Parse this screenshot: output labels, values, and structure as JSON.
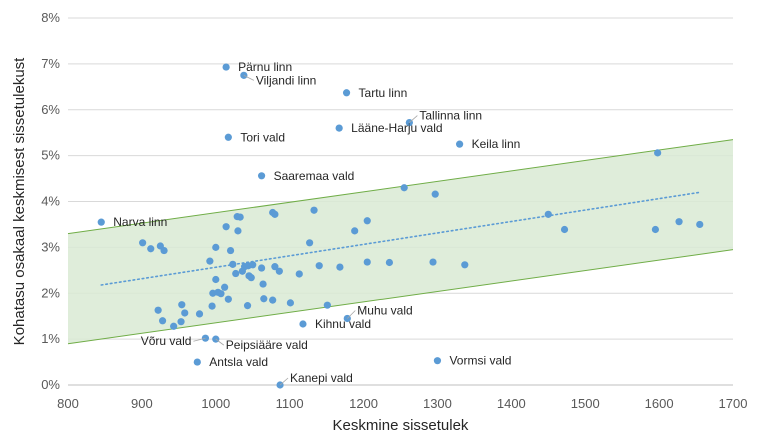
{
  "chart_data": {
    "type": "scatter",
    "xlabel": "Keskmine sissetulek",
    "ylabel": "Kohatasu osakaal keskmisest sissetulekust",
    "xlim": [
      800,
      1700
    ],
    "ylim": [
      0,
      8
    ],
    "x_ticks": [
      800,
      900,
      1000,
      1100,
      1200,
      1300,
      1400,
      1500,
      1600,
      1700
    ],
    "y_ticks": [
      "0%",
      "1%",
      "2%",
      "3%",
      "4%",
      "5%",
      "6%",
      "7%",
      "8%"
    ],
    "grid": true,
    "legend": "none",
    "trendline": {
      "type": "linear",
      "style": "dotted",
      "from": [
        845,
        2.18
      ],
      "to": [
        1655,
        4.2
      ]
    },
    "band": {
      "upper": {
        "from": [
          800,
          3.3
        ],
        "to": [
          1700,
          5.35
        ]
      },
      "lower": {
        "from": [
          800,
          0.9
        ],
        "to": [
          1700,
          2.95
        ]
      },
      "fill": "#d9ead3",
      "stroke": "#70ad47"
    },
    "point_color": "#5b9bd5",
    "labels": [
      {
        "text": "Pärnu linn",
        "x": 1014,
        "y": 6.93,
        "dx": 12,
        "dy": 0,
        "leader": false
      },
      {
        "text": "Viljandi linn",
        "x": 1038,
        "y": 6.75,
        "dx": 12,
        "dy": 5,
        "leader": true
      },
      {
        "text": "Tartu linn",
        "x": 1177,
        "y": 6.37,
        "dx": 12,
        "dy": 0,
        "leader": false
      },
      {
        "text": "Tallinna linn",
        "x": 1262,
        "y": 5.72,
        "dx": 10,
        "dy": -7,
        "leader": true
      },
      {
        "text": "Lääne-Harju vald",
        "x": 1167,
        "y": 5.6,
        "dx": 12,
        "dy": 0,
        "leader": false
      },
      {
        "text": "Tori vald",
        "x": 1017,
        "y": 5.4,
        "dx": 12,
        "dy": 0,
        "leader": false
      },
      {
        "text": "Keila linn",
        "x": 1330,
        "y": 5.25,
        "dx": 12,
        "dy": 0,
        "leader": false
      },
      {
        "text": "Saaremaa vald",
        "x": 1062,
        "y": 4.56,
        "dx": 12,
        "dy": 0,
        "leader": false
      },
      {
        "text": "Narva linn",
        "x": 845,
        "y": 3.55,
        "dx": 12,
        "dy": 0,
        "leader": false
      },
      {
        "text": "Muhu vald",
        "x": 1178,
        "y": 1.45,
        "dx": 10,
        "dy": -8,
        "leader": true
      },
      {
        "text": "Kihnu vald",
        "x": 1118,
        "y": 1.33,
        "dx": 12,
        "dy": 0,
        "leader": false
      },
      {
        "text": "Võru vald",
        "x": 986,
        "y": 1.02,
        "dx": -14,
        "dy": 3,
        "leader": true,
        "anchor": "end"
      },
      {
        "text": "Peipsiääre vald",
        "x": 1000,
        "y": 1.0,
        "dx": 10,
        "dy": 6,
        "leader": true
      },
      {
        "text": "Vormsi vald",
        "x": 1300,
        "y": 0.53,
        "dx": 12,
        "dy": 0,
        "leader": false
      },
      {
        "text": "Antsla vald",
        "x": 975,
        "y": 0.5,
        "dx": 12,
        "dy": 0,
        "leader": false
      },
      {
        "text": "Kanepi vald",
        "x": 1087,
        "y": 0.0,
        "dx": 10,
        "dy": -7,
        "leader": true
      }
    ],
    "points": [
      [
        1014,
        6.93
      ],
      [
        1038,
        6.75
      ],
      [
        1177,
        6.37
      ],
      [
        1262,
        5.72
      ],
      [
        1167,
        5.6
      ],
      [
        1017,
        5.4
      ],
      [
        1330,
        5.25
      ],
      [
        1598,
        5.06
      ],
      [
        1062,
        4.56
      ],
      [
        1255,
        4.3
      ],
      [
        1297,
        4.16
      ],
      [
        845,
        3.55
      ],
      [
        1077,
        3.76
      ],
      [
        1080,
        3.72
      ],
      [
        1133,
        3.81
      ],
      [
        1029,
        3.67
      ],
      [
        1033,
        3.66
      ],
      [
        1450,
        3.72
      ],
      [
        1205,
        3.58
      ],
      [
        1014,
        3.45
      ],
      [
        1030,
        3.36
      ],
      [
        1188,
        3.36
      ],
      [
        1472,
        3.39
      ],
      [
        1595,
        3.39
      ],
      [
        1627,
        3.56
      ],
      [
        1655,
        3.5
      ],
      [
        901,
        3.1
      ],
      [
        912,
        2.97
      ],
      [
        925,
        3.03
      ],
      [
        930,
        2.93
      ],
      [
        1000,
        3.0
      ],
      [
        1020,
        2.93
      ],
      [
        1127,
        3.1
      ],
      [
        992,
        2.7
      ],
      [
        1023,
        2.63
      ],
      [
        1039,
        2.58
      ],
      [
        1044,
        2.6
      ],
      [
        1050,
        2.62
      ],
      [
        1062,
        2.55
      ],
      [
        1080,
        2.58
      ],
      [
        1086,
        2.48
      ],
      [
        1113,
        2.42
      ],
      [
        1140,
        2.6
      ],
      [
        1168,
        2.57
      ],
      [
        1205,
        2.68
      ],
      [
        1235,
        2.67
      ],
      [
        1294,
        2.68
      ],
      [
        1337,
        2.62
      ],
      [
        1027,
        2.43
      ],
      [
        1036,
        2.48
      ],
      [
        1045,
        2.38
      ],
      [
        1048,
        2.34
      ],
      [
        1000,
        2.3
      ],
      [
        996,
        2.0
      ],
      [
        1003,
        2.02
      ],
      [
        1007,
        1.99
      ],
      [
        1012,
        2.13
      ],
      [
        1064,
        2.2
      ],
      [
        922,
        1.63
      ],
      [
        928,
        1.4
      ],
      [
        943,
        1.28
      ],
      [
        953,
        1.38
      ],
      [
        954,
        1.75
      ],
      [
        958,
        1.57
      ],
      [
        978,
        1.55
      ],
      [
        995,
        1.72
      ],
      [
        1017,
        1.87
      ],
      [
        1043,
        1.73
      ],
      [
        1065,
        1.88
      ],
      [
        1077,
        1.85
      ],
      [
        1101,
        1.79
      ],
      [
        1151,
        1.74
      ],
      [
        1178,
        1.45
      ],
      [
        1118,
        1.33
      ],
      [
        986,
        1.02
      ],
      [
        1000,
        1.0
      ],
      [
        1300,
        0.53
      ],
      [
        975,
        0.5
      ],
      [
        1087,
        0.0
      ]
    ]
  }
}
